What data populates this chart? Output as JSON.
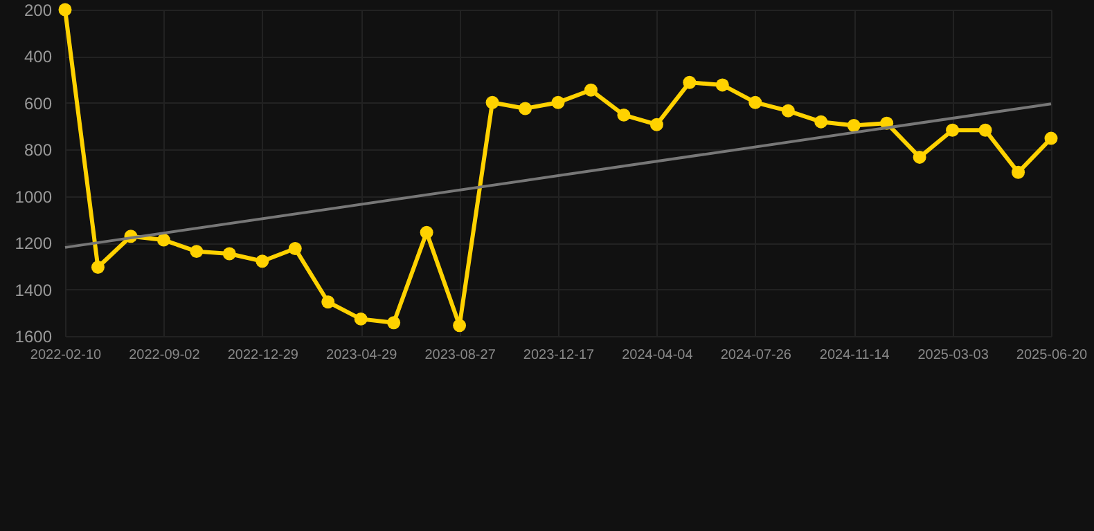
{
  "chart_data": {
    "type": "line",
    "categories": [
      "2022-02-10",
      null,
      null,
      "2022-09-02",
      null,
      null,
      "2022-12-29",
      null,
      null,
      "2023-04-29",
      null,
      null,
      "2023-08-27",
      null,
      null,
      "2023-12-17",
      null,
      null,
      "2024-04-04",
      null,
      null,
      "2024-07-26",
      null,
      null,
      "2024-11-14",
      null,
      null,
      "2025-03-03",
      null,
      null,
      "2025-06-20"
    ],
    "series": [
      {
        "color": "#ffd200",
        "marker": "circle",
        "values": [
          200,
          1305,
          1172,
          1188,
          1237,
          1247,
          1279,
          1225,
          1454,
          1527,
          1543,
          1156,
          1555,
          598,
          624,
          598,
          545,
          652,
          693,
          512,
          523,
          598,
          634,
          681,
          697,
          687,
          833,
          717,
          717,
          898,
          752
        ]
      },
      {
        "type": "line",
        "color": "#777777",
        "marker": "none",
        "values": [
          1220,
          null,
          null,
          null,
          null,
          null,
          null,
          null,
          null,
          null,
          null,
          null,
          null,
          null,
          null,
          null,
          null,
          null,
          null,
          null,
          null,
          null,
          null,
          null,
          null,
          null,
          null,
          null,
          null,
          null,
          604
        ]
      }
    ],
    "ylim": [
      1600,
      200
    ],
    "yticks": [
      200,
      400,
      600,
      800,
      1000,
      1200,
      1400,
      1600
    ],
    "grid": true,
    "legend": false
  }
}
